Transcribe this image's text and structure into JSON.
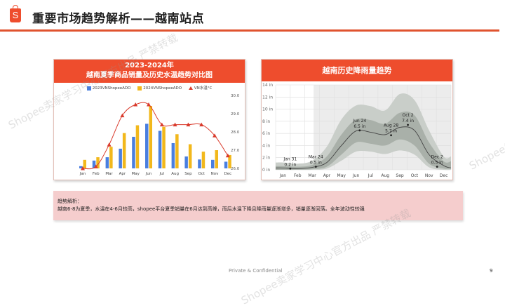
{
  "header": {
    "logo_letter": "S",
    "title": "重要市场趋势解析——越南站点"
  },
  "left_card": {
    "title_line1": "2023-2024年",
    "title_line2": "越南夏季商品销量及历史水温趋势对比图",
    "legend": [
      "2023VNShopeeADO",
      "2024VNShopeeADO",
      "VN水温°C"
    ]
  },
  "right_card": {
    "title": "越南历史降雨量趋势"
  },
  "note": {
    "heading": "趋势解析：",
    "body": "越南6-8为夏季，水温在4-6月较高，shopee平台夏季销量在6月达到高峰，而后水温下降且降雨量逐渐增多，销量逐渐回落。全年波动性较强"
  },
  "footer": {
    "confidential": "Private & Confidential",
    "page_number": "9"
  },
  "watermark": "Shopee卖家学习中心官方出品 严禁转载",
  "colors": {
    "brand": "#ee4d2d",
    "series_2023": "#4a7fe0",
    "series_2024": "#f2b81c",
    "temp_line": "#d93a2b",
    "note_bg": "#f5cdcd"
  },
  "chart_data": [
    {
      "type": "bar",
      "title": "2023-2024年 越南夏季商品销量及历史水温趋势对比图",
      "categories": [
        "Jan",
        "Feb",
        "Mar",
        "Apr",
        "May",
        "Jun",
        "Jul",
        "Aug",
        "Sep",
        "Oct",
        "Nov",
        "Dec"
      ],
      "series": [
        {
          "name": "2023VNShopeeADO",
          "kind": "bar",
          "values": [
            6,
            21,
            30,
            53,
            85,
            120,
            101,
            68,
            32,
            24,
            23,
            18
          ]
        },
        {
          "name": "2024VNShopeeADO",
          "kind": "bar",
          "values": [
            23,
            30,
            58,
            95,
            116,
            168,
            112,
            92,
            65,
            45,
            49,
            36
          ]
        },
        {
          "name": "VN水温°C",
          "kind": "line",
          "axis": "right",
          "values": [
            26.0,
            26.1,
            27.3,
            28.9,
            29.5,
            29.5,
            28.4,
            28.4,
            28.4,
            28.4,
            27.8,
            26.7
          ]
        }
      ],
      "y2_ticks": [
        "26.0",
        "27.0",
        "28.0",
        "29.0",
        "30.0"
      ],
      "y2lim": [
        26.0,
        30.0
      ],
      "legend_position": "top",
      "grid": false
    },
    {
      "type": "area",
      "title": "越南历史降雨量趋势",
      "categories": [
        "Jan",
        "Feb",
        "Mar",
        "Apr",
        "May",
        "Jun",
        "Jul",
        "Aug",
        "Sep",
        "Oct",
        "Nov",
        "Dec"
      ],
      "y_ticks": [
        "0 in",
        "2 in",
        "4 in",
        "6 in",
        "8 in",
        "10 in",
        "12 in",
        "14 in"
      ],
      "ylim": [
        0,
        14
      ],
      "grid": true,
      "series": [
        {
          "name": "median",
          "values": [
            0.3,
            0.2,
            0.4,
            1.2,
            4.0,
            6.4,
            6.2,
            5.8,
            7.0,
            6.5,
            2.5,
            0.7
          ]
        },
        {
          "name": "p25-p75_low",
          "values": [
            0.0,
            0.0,
            0.1,
            0.5,
            2.5,
            4.5,
            4.3,
            4.0,
            5.0,
            4.0,
            1.0,
            0.2
          ]
        },
        {
          "name": "p25-p75_high",
          "values": [
            0.6,
            0.5,
            0.8,
            2.2,
            5.8,
            8.3,
            8.2,
            7.6,
            9.4,
            9.0,
            4.5,
            1.4
          ]
        },
        {
          "name": "p10-p90_low",
          "values": [
            0.0,
            0.0,
            0.0,
            0.2,
            1.5,
            3.0,
            3.0,
            2.6,
            3.2,
            2.5,
            0.4,
            0.0
          ]
        },
        {
          "name": "p10-p90_high",
          "values": [
            1.2,
            1.0,
            1.5,
            3.8,
            8.3,
            10.6,
            10.5,
            9.8,
            12.5,
            11.5,
            6.5,
            2.2
          ]
        }
      ],
      "annotations": [
        {
          "label": "Jan 31",
          "value": "0.2 in",
          "x": 1.0,
          "y": 0.2
        },
        {
          "label": "Mar 24",
          "value": "0.5 in",
          "x": 2.75,
          "y": 0.5
        },
        {
          "label": "Jun 24",
          "value": "6.5 in",
          "x": 5.75,
          "y": 6.5
        },
        {
          "label": "Aug 28",
          "value": "5.7 in",
          "x": 7.9,
          "y": 5.7
        },
        {
          "label": "Oct 2",
          "value": "7.4 in",
          "x": 9.05,
          "y": 7.4
        },
        {
          "label": "Dec 2",
          "value": "0.5 in",
          "x": 11.05,
          "y": 0.5
        }
      ],
      "shaded_region": [
        "Apr",
        "Dec"
      ]
    }
  ]
}
